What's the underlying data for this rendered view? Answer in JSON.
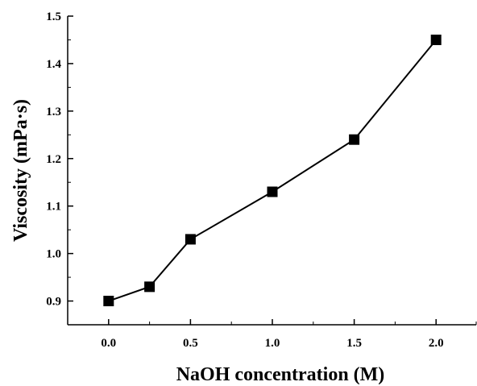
{
  "chart_data": {
    "type": "line",
    "xlabel": "NaOH concentration (M)",
    "ylabel": "Viscosity (mPa·s)",
    "xlim": [
      -0.25,
      2.25
    ],
    "ylim": [
      0.85,
      1.5
    ],
    "x_ticks": [
      0.0,
      0.5,
      1.0,
      1.5,
      2.0
    ],
    "x_tick_labels": [
      "0.0",
      "0.5",
      "1.0",
      "1.5",
      "2.0"
    ],
    "y_ticks": [
      0.9,
      1.0,
      1.1,
      1.2,
      1.3,
      1.4,
      1.5
    ],
    "y_tick_labels": [
      "0.9",
      "1.0",
      "1.1",
      "1.2",
      "1.3",
      "1.4",
      "1.5"
    ],
    "grid": false,
    "legend": "none",
    "marker": "square",
    "color": "#000000",
    "series": [
      {
        "x": [
          0.0,
          0.25,
          0.5,
          1.0,
          1.5,
          2.0
        ],
        "y": [
          0.9,
          0.93,
          1.03,
          1.13,
          1.24,
          1.45
        ]
      }
    ]
  }
}
